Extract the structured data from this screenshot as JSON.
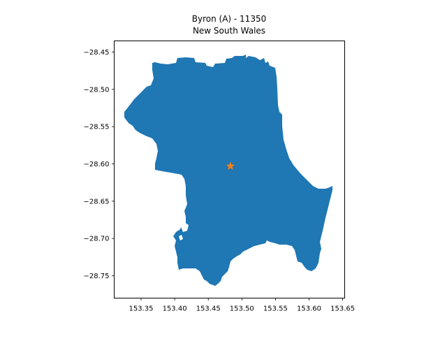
{
  "title": {
    "line1": "Byron (A) - 11350",
    "line2": "New South Wales"
  },
  "map": {
    "type": "choropleth-outline",
    "region_name": "Byron (A)",
    "region_code": "11350",
    "state": "New South Wales",
    "fill_color": "#1f77b4",
    "marker": {
      "symbol": "star",
      "color": "#ff7f0e",
      "lon": 153.483,
      "lat": -28.603
    },
    "x_ticks": [
      "153.35",
      "153.40",
      "153.45",
      "153.50",
      "153.55",
      "153.60",
      "153.65"
    ],
    "y_ticks": [
      "−28.45",
      "−28.50",
      "−28.55",
      "−28.60",
      "−28.65",
      "−28.70",
      "−28.75"
    ],
    "xlim": [
      153.31,
      153.653
    ],
    "ylim": [
      -28.78,
      -28.435
    ],
    "grid": false
  }
}
